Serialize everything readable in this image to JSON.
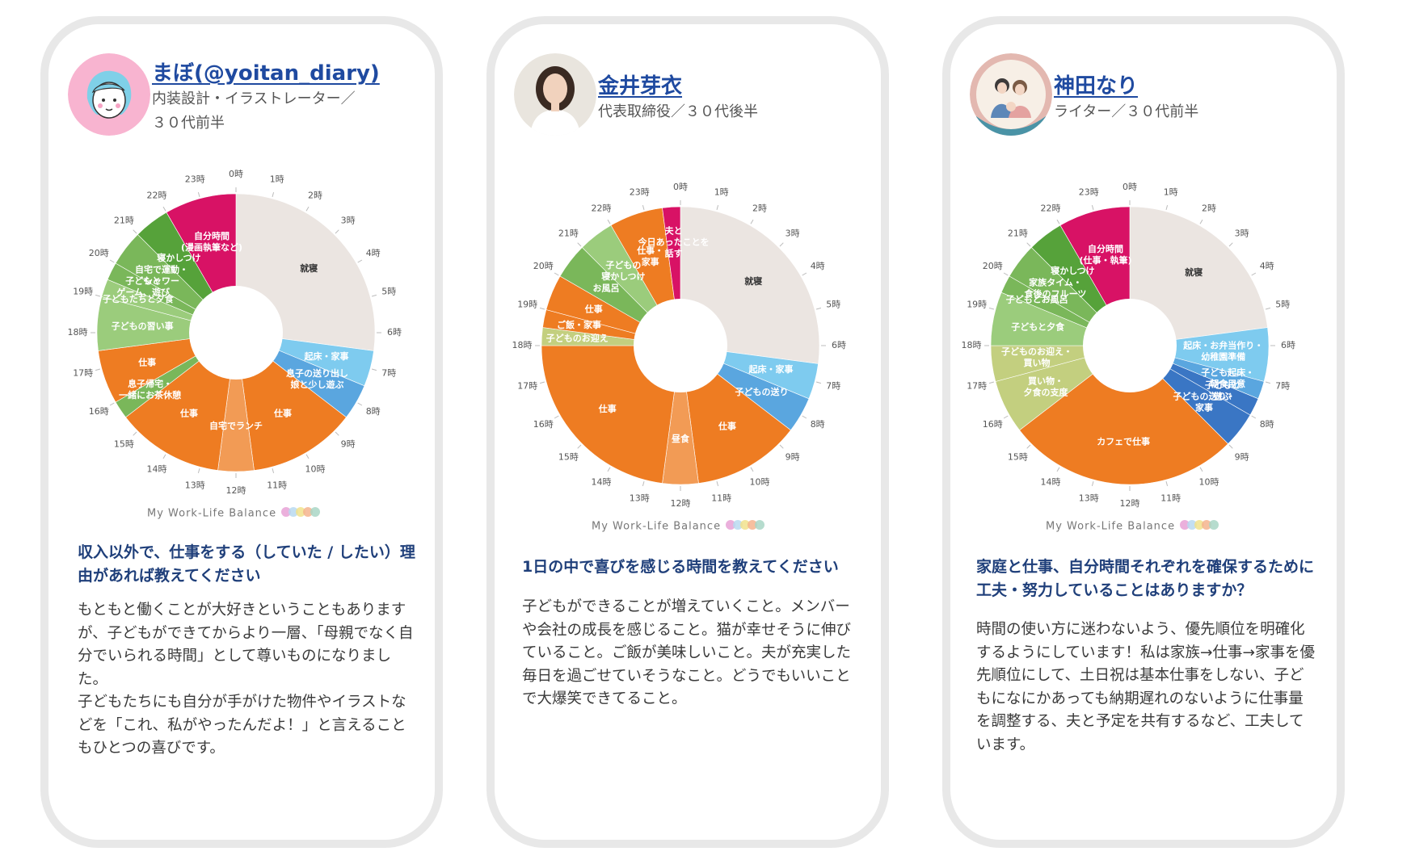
{
  "colors": {
    "sleep": "#ebe5e1",
    "self": "#d81265",
    "work": "#ee7c22",
    "work_light": "#f29b55",
    "blue_light": "#7ecbef",
    "blue_mid": "#5aa6df",
    "blue_dark": "#3a76c4",
    "green_dark": "#56a23a",
    "green_mid": "#7ab75a",
    "green_light": "#9bcc7c",
    "olive": "#c3cf7f",
    "title_blue": "#1f4aa0"
  },
  "brand_text": "My Work-Life Balance",
  "hour_labels": [
    "0時",
    "1時",
    "2時",
    "3時",
    "4時",
    "5時",
    "6時",
    "7時",
    "8時",
    "9時",
    "10時",
    "11時",
    "12時",
    "13時",
    "14時",
    "15時",
    "16時",
    "17時",
    "18時",
    "19時",
    "20時",
    "21時",
    "22時",
    "23時"
  ],
  "cards": [
    {
      "name": "まぼ(@yoitan_diary)",
      "role_lines": [
        "内装設計・イラストレーター／",
        "３０代前半"
      ],
      "question": "収入以外で、仕事をする（していた / したい）理由があれば教えてください",
      "answer_paragraphs": [
        "もともと働くことが大好きということもありますが、子どもができてからより一層、「母親でなく自分でいられる時間」として尊いものになりました。",
        "子どもたちにも自分が手がけた物件やイラストなどを「これ、私がやったんだよ！」と言えることもひとつの喜びです。"
      ]
    },
    {
      "name": "金井芽衣",
      "role_lines": [
        "代表取締役／３０代後半"
      ],
      "question": "1日の中で喜びを感じる時間を教えてください",
      "answer_paragraphs": [
        "子どもができることが増えていくこと。メンバーや会社の成長を感じること。猫が幸せそうに伸びていること。ご飯が美味しいこと。夫が充実した毎日を過ごせていそうなこと。どうでもいいことで大爆笑できてること。"
      ]
    },
    {
      "name": "神田なり",
      "role_lines": [
        "ライター／３０代前半"
      ],
      "question": "家庭と仕事、自分時間それぞれを確保するために工夫・努力していることはありますか？",
      "answer_paragraphs": [
        "時間の使い方に迷わないよう、優先順位を明確化するようにしています！私は家族→仕事→家事を優先順位にして、土日祝は基本仕事をしない、子どもになにかあっても納期遅れのないように仕事量を調整する、夫と予定を共有するなど、工夫しています。"
      ]
    }
  ],
  "chart_data": [
    {
      "type": "pie",
      "title": "",
      "unit": "hour of day (0時 at top, clockwise)",
      "segments": [
        {
          "start": 0,
          "end": 6.5,
          "label": "就寝",
          "color": "sleep"
        },
        {
          "start": 6.5,
          "end": 7.5,
          "label": "起床・家事",
          "color": "blue_light"
        },
        {
          "start": 7.5,
          "end": 8.5,
          "label": "息子の送り出し\n娘と少し遊ぶ",
          "color": "blue_mid"
        },
        {
          "start": 8.5,
          "end": 11.5,
          "label": "仕事",
          "color": "work"
        },
        {
          "start": 11.5,
          "end": 12.5,
          "label": "自宅でランチ",
          "color": "work_light"
        },
        {
          "start": 12.5,
          "end": 15.5,
          "label": "仕事",
          "color": "work"
        },
        {
          "start": 15.5,
          "end": 16.0,
          "label": "息子帰宅・\n一緒にお茶休憩",
          "color": "green_mid"
        },
        {
          "start": 16.0,
          "end": 17.5,
          "label": "仕事",
          "color": "work"
        },
        {
          "start": 17.5,
          "end": 19.0,
          "label": "子どもの習い事",
          "color": "green_light"
        },
        {
          "start": 19.0,
          "end": 19.5,
          "label": "子どもたちと夕食",
          "color": "green_light"
        },
        {
          "start": 19.5,
          "end": 20.0,
          "label": "子どもと\nゲーム、遊び",
          "color": "green_mid"
        },
        {
          "start": 20.0,
          "end": 21.0,
          "label": "自宅で運動・\nシャワー",
          "color": "green_mid"
        },
        {
          "start": 21.0,
          "end": 22.0,
          "label": "寝かしつけ",
          "color": "green_dark"
        },
        {
          "start": 22.0,
          "end": 24.0,
          "label": "自分時間\n(漫画執筆など)",
          "color": "self"
        }
      ]
    },
    {
      "type": "pie",
      "title": "",
      "unit": "hour of day (0時 at top, clockwise)",
      "segments": [
        {
          "start": 0,
          "end": 6.5,
          "label": "就寝",
          "color": "sleep"
        },
        {
          "start": 6.5,
          "end": 7.5,
          "label": "起床・家事",
          "color": "blue_light"
        },
        {
          "start": 7.5,
          "end": 8.5,
          "label": "子どもの送り",
          "color": "blue_mid"
        },
        {
          "start": 8.5,
          "end": 11.5,
          "label": "仕事",
          "color": "work"
        },
        {
          "start": 11.5,
          "end": 12.5,
          "label": "昼食",
          "color": "work_light"
        },
        {
          "start": 12.5,
          "end": 18.0,
          "label": "仕事",
          "color": "work"
        },
        {
          "start": 18.0,
          "end": 18.5,
          "label": "子どものお迎え",
          "color": "olive"
        },
        {
          "start": 18.5,
          "end": 19.0,
          "label": "ご飯・家事",
          "color": "work"
        },
        {
          "start": 19.0,
          "end": 20.0,
          "label": "仕事",
          "color": "work"
        },
        {
          "start": 20.0,
          "end": 21.0,
          "label": "お風呂",
          "color": "green_mid"
        },
        {
          "start": 21.0,
          "end": 22.0,
          "label": "子どもの\n寝かしつけ",
          "color": "green_light"
        },
        {
          "start": 22.0,
          "end": 23.5,
          "label": "仕事・\n家事",
          "color": "work"
        },
        {
          "start": 23.5,
          "end": 24.0,
          "label": "夫と\n今日あったことを\n話す",
          "color": "self"
        }
      ]
    },
    {
      "type": "pie",
      "title": "",
      "unit": "hour of day (0時 at top, clockwise)",
      "segments": [
        {
          "start": 0,
          "end": 5.5,
          "label": "就寝",
          "color": "sleep"
        },
        {
          "start": 5.5,
          "end": 7.0,
          "label": "起床・お弁当作り・\n幼稚園準備",
          "color": "blue_light"
        },
        {
          "start": 7.0,
          "end": 7.5,
          "label": "子ども起床・\n朝食用意",
          "color": "blue_mid"
        },
        {
          "start": 7.5,
          "end": 8.0,
          "label": "子どもと\n遊ぶ",
          "color": "blue_dark"
        },
        {
          "start": 8.0,
          "end": 9.0,
          "label": "子どもの送り・\n家事",
          "color": "blue_dark"
        },
        {
          "start": 9.0,
          "end": 15.5,
          "label": "カフェで仕事",
          "color": "work"
        },
        {
          "start": 15.5,
          "end": 17.0,
          "label": "買い物・\n夕食の支度",
          "color": "olive"
        },
        {
          "start": 17.0,
          "end": 18.0,
          "label": "子どものお迎え・\n買い物",
          "color": "olive"
        },
        {
          "start": 18.0,
          "end": 19.5,
          "label": "子どもと夕食",
          "color": "green_light"
        },
        {
          "start": 19.5,
          "end": 20.0,
          "label": "子どもとお風呂",
          "color": "green_mid"
        },
        {
          "start": 20.0,
          "end": 21.0,
          "label": "家族タイム・\n食後のフルーツ",
          "color": "green_mid"
        },
        {
          "start": 21.0,
          "end": 22.0,
          "label": "寝かしつけ",
          "color": "green_dark"
        },
        {
          "start": 22.0,
          "end": 24.0,
          "label": "自分時間\n(仕事・執筆)",
          "color": "self"
        }
      ]
    }
  ]
}
